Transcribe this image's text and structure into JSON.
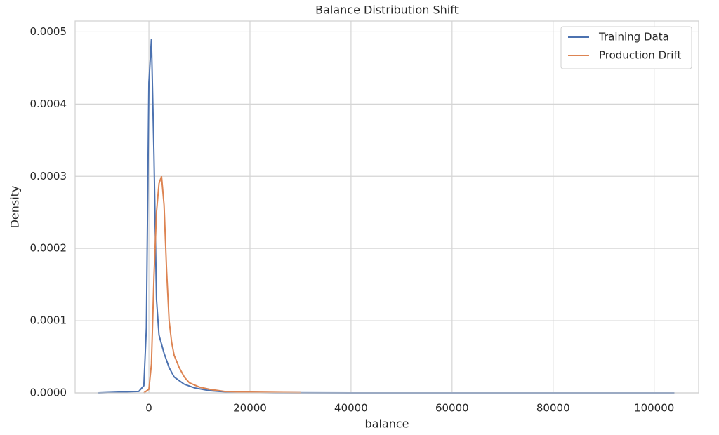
{
  "chart_data": {
    "type": "line",
    "title": "Balance Distribution Shift",
    "xlabel": "balance",
    "ylabel": "Density",
    "xlim": [
      -14600,
      108800
    ],
    "ylim": [
      0,
      0.000515
    ],
    "xticks": [
      0,
      20000,
      40000,
      60000,
      80000,
      100000
    ],
    "yticks": [
      {
        "value": 0,
        "label": "0.0000"
      },
      {
        "value": 0.0001,
        "label": "0.0001"
      },
      {
        "value": 0.0002,
        "label": "0.0002"
      },
      {
        "value": 0.0003,
        "label": "0.0003"
      },
      {
        "value": 0.0004,
        "label": "0.0004"
      },
      {
        "value": 0.0005,
        "label": "0.0005"
      }
    ],
    "grid": true,
    "legend": "upper right",
    "series": [
      {
        "name": "Training Data",
        "color": "#4c72b0",
        "x": [
          -10000,
          -2000,
          -1000,
          -500,
          0,
          500,
          1000,
          1500,
          2000,
          3000,
          4000,
          5000,
          7000,
          9000,
          12000,
          16000,
          25000,
          40000,
          60000,
          80000,
          104000
        ],
        "values": [
          0,
          2e-06,
          1e-05,
          9e-05,
          0.00043,
          0.00049,
          0.00033,
          0.00013,
          8e-05,
          5.5e-05,
          3.5e-05,
          2.2e-05,
          1.2e-05,
          7e-06,
          3e-06,
          1e-06,
          3e-07,
          0,
          0,
          0,
          0
        ]
      },
      {
        "name": "Production Drift",
        "color": "#dd8452",
        "x": [
          -1000,
          0,
          500,
          1000,
          1500,
          2000,
          2500,
          3000,
          3500,
          4000,
          4500,
          5000,
          6000,
          7000,
          8000,
          10000,
          12000,
          15000,
          20000,
          30000
        ],
        "values": [
          0,
          5e-06,
          4e-05,
          0.00016,
          0.00025,
          0.00029,
          0.0003,
          0.00026,
          0.00017,
          0.0001,
          7e-05,
          5.2e-05,
          3.5e-05,
          2.2e-05,
          1.4e-05,
          8e-06,
          5e-06,
          2e-06,
          1e-06,
          3e-07
        ]
      }
    ]
  }
}
